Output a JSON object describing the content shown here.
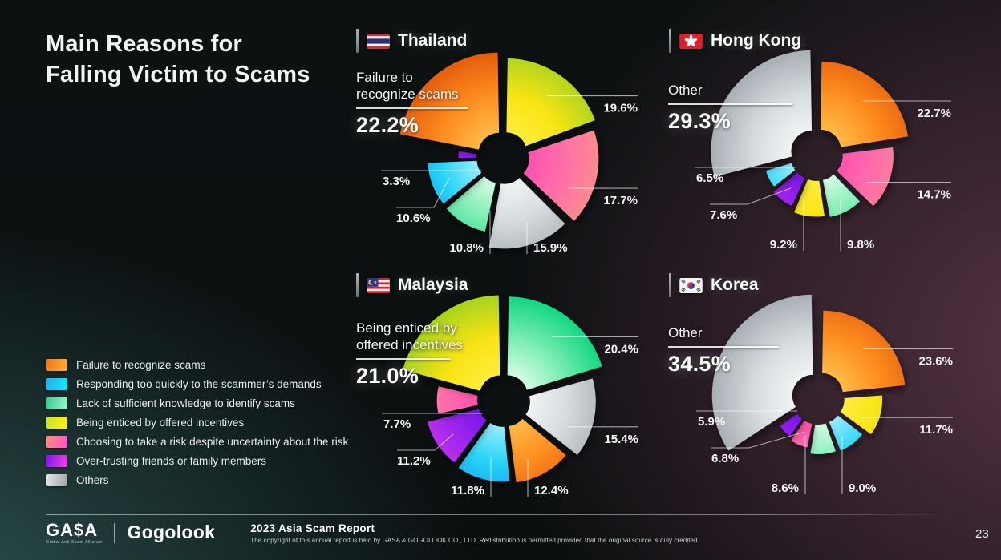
{
  "slide": {
    "title_line1": "Main Reasons for",
    "title_line2": "Falling Victim to Scams",
    "page_number": "23"
  },
  "palette": {
    "orange": {
      "inner": "#ffc553",
      "mid": "#ff9021",
      "outer": "#e45c0d"
    },
    "cyan": {
      "inner": "#b5f3ff",
      "mid": "#27d3f7",
      "outer": "#1793ee"
    },
    "green": {
      "inner": "#eefff4",
      "mid": "#7deeb2",
      "outer": "#0bd57f"
    },
    "yellow": {
      "inner": "#fff04a",
      "mid": "#f8e414",
      "outer": "#a6d31f"
    },
    "pink": {
      "inner": "#ff4bb1",
      "mid": "#ff6fa9",
      "outer": "#ff9486"
    },
    "purple": {
      "inner": "#7012e9",
      "mid": "#a428ef",
      "outer": "#e23ade"
    },
    "gray": {
      "inner": "#f8fafa",
      "mid": "#d7dcdf",
      "outer": "#a7aeb3"
    }
  },
  "legend": {
    "items": [
      {
        "key": "orange",
        "label": "Failure to recognize scams",
        "chip": [
          "#ef7618",
          "#ffb335"
        ]
      },
      {
        "key": "cyan",
        "label": "Responding too quickly to the scammer’s demands",
        "chip": [
          "#22aef4",
          "#0deef5"
        ]
      },
      {
        "key": "green",
        "label": "Lack of sufficient knowledge to identify scams",
        "chip": [
          "#2ecd8b",
          "#9ef7cb"
        ]
      },
      {
        "key": "yellow",
        "label": "Being enticed by offered incentives",
        "chip": [
          "#c6e22a",
          "#fff215"
        ]
      },
      {
        "key": "pink",
        "label": "Choosing to take a risk despite uncertainty about the risk",
        "chip": [
          "#ff8d7c",
          "#ff55ce"
        ]
      },
      {
        "key": "purple",
        "label": "Over-trusting friends or family members",
        "chip": [
          "#8112f2",
          "#f243de"
        ]
      },
      {
        "key": "gray",
        "label": "Others",
        "chip": [
          "#e8e9e9",
          "#9da2a5"
        ]
      }
    ]
  },
  "chart_data": [
    {
      "type": "pie",
      "variant": "nightingale-rose",
      "country": "Thailand",
      "flag_icon": "thailand-flag",
      "callout": {
        "lines": [
          "Failure to",
          "recognize scams"
        ],
        "value": "22.2%"
      },
      "slices": [
        {
          "category": "Being enticed by offered incentives",
          "color": "yellow",
          "value": 19.6
        },
        {
          "category": "Choosing to take a risk despite uncertainty about the risk",
          "color": "pink",
          "value": 17.7
        },
        {
          "category": "Others",
          "color": "gray",
          "value": 15.9
        },
        {
          "category": "Lack of sufficient knowledge to identify scams",
          "color": "green",
          "value": 10.8
        },
        {
          "category": "Responding too quickly to the scammer’s demands",
          "color": "cyan",
          "value": 10.6
        },
        {
          "category": "Over-trusting friends or family members",
          "color": "purple",
          "value": 3.3
        },
        {
          "category": "Failure to recognize scams",
          "color": "orange",
          "value": 22.2,
          "highlight": true
        }
      ]
    },
    {
      "type": "pie",
      "variant": "nightingale-rose",
      "country": "Hong Kong",
      "flag_icon": "hong-kong-flag",
      "callout": {
        "lines": [
          "Other"
        ],
        "value": "29.3%"
      },
      "slices": [
        {
          "category": "Failure to recognize scams",
          "color": "orange",
          "value": 22.7
        },
        {
          "category": "Choosing to take a risk despite uncertainty about the risk",
          "color": "pink",
          "value": 14.7
        },
        {
          "category": "Lack of sufficient knowledge to identify scams",
          "color": "green",
          "value": 9.8
        },
        {
          "category": "Being enticed by offered incentives",
          "color": "yellow",
          "value": 9.2
        },
        {
          "category": "Over-trusting friends or family members",
          "color": "purple",
          "value": 7.6
        },
        {
          "category": "Responding too quickly to the scammer’s demands",
          "color": "cyan",
          "value": 6.5
        },
        {
          "category": "Others",
          "color": "gray",
          "value": 29.3,
          "highlight": true
        }
      ]
    },
    {
      "type": "pie",
      "variant": "nightingale-rose",
      "country": "Malaysia",
      "flag_icon": "malaysia-flag",
      "callout": {
        "lines": [
          "Being enticed by",
          "offered incentives"
        ],
        "value": "21.0%"
      },
      "slices": [
        {
          "category": "Lack of sufficient knowledge to identify scams",
          "color": "green",
          "value": 20.4
        },
        {
          "category": "Others",
          "color": "gray",
          "value": 15.4
        },
        {
          "category": "Failure to recognize scams",
          "color": "orange",
          "value": 12.4
        },
        {
          "category": "Responding too quickly to the scammer’s demands",
          "color": "cyan",
          "value": 11.8
        },
        {
          "category": "Over-trusting friends or family members",
          "color": "purple",
          "value": 11.2
        },
        {
          "category": "Choosing to take a risk despite uncertainty about the risk",
          "color": "pink",
          "value": 7.7
        },
        {
          "category": "Being enticed by offered incentives",
          "color": "yellow",
          "value": 21.0,
          "highlight": true
        }
      ]
    },
    {
      "type": "pie",
      "variant": "nightingale-rose",
      "country": "Korea",
      "flag_icon": "korea-flag",
      "callout": {
        "lines": [
          "Other"
        ],
        "value": "34.5%"
      },
      "slices": [
        {
          "category": "Failure to recognize scams",
          "color": "orange",
          "value": 23.6
        },
        {
          "category": "Being enticed by offered incentives",
          "color": "yellow",
          "value": 11.7
        },
        {
          "category": "Responding too quickly to the scammer’s demands",
          "color": "cyan",
          "value": 9.0
        },
        {
          "category": "Lack of sufficient knowledge to identify scams",
          "color": "green",
          "value": 8.6
        },
        {
          "category": "Choosing to take a risk despite uncertainty about the risk",
          "color": "pink",
          "value": 6.8
        },
        {
          "category": "Over-trusting friends or family members",
          "color": "purple",
          "value": 5.9
        },
        {
          "category": "Others",
          "color": "gray",
          "value": 34.5,
          "highlight": true
        }
      ]
    }
  ],
  "footer": {
    "gasa_logo": "GA$A",
    "gasa_subtitle": "Global Anti-Scam Alliance",
    "gogolook_logo": "Gogolook",
    "report_title": "2023 Asia Scam Report",
    "copyright": "The copyright of this annual report is held by GASA & GOGOLOOK CO., LTD. Redistribution is permitted provided that the original source is duly credited."
  }
}
